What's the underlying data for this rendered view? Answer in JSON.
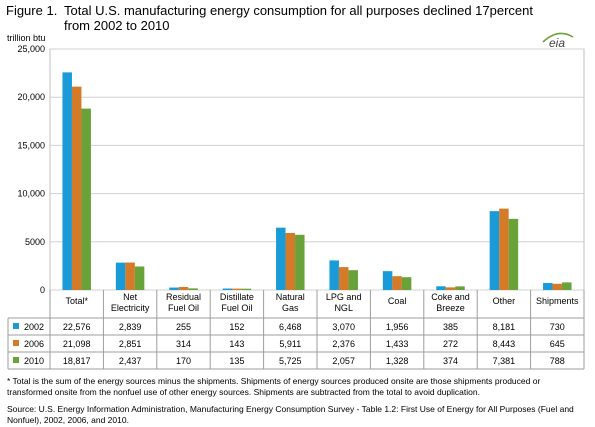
{
  "title_prefix": "Figure 1.",
  "title_line1": "Total U.S. manufacturing energy consumption for all purposes declined 17percent",
  "title_line2": "from 2002 to 2010",
  "logo_text": "eia",
  "footnote": "* Total is the sum of the energy sources minus the shipments. Shipments of energy sources produced onsite are those shipments produced or transformed onsite from the nonfuel use of other energy sources. Shipments are subtracted from the total to avoid duplication.",
  "source": "Source:  U.S. Energy Information Administration, Manufacturing Energy Consumption Survey - Table 1.2: First Use of Energy for All Purposes (Fuel and Nonfuel), 2002, 2006, and 2010.",
  "chart_data": {
    "type": "bar",
    "title": "Total U.S. manufacturing energy consumption for all purposes declined 17percent from 2002 to 2010",
    "ylabel": "trillion btu",
    "ylim": [
      0,
      25000
    ],
    "yticks": [
      0,
      5000,
      10000,
      15000,
      20000,
      25000
    ],
    "ytick_labels": [
      "0",
      "5000",
      "10,000",
      "15,000",
      "20,000",
      "25,000"
    ],
    "grid": true,
    "legend": "table-left",
    "categories": [
      [
        "Total*"
      ],
      [
        "Net",
        "Electricity"
      ],
      [
        "Residual",
        "Fuel Oil"
      ],
      [
        "Distillate",
        "Fuel Oil"
      ],
      [
        "Natural",
        "Gas"
      ],
      [
        "LPG and",
        "NGL"
      ],
      [
        "Coal"
      ],
      [
        "Coke and",
        "Breeze"
      ],
      [
        "Other"
      ],
      [
        "Shipments"
      ]
    ],
    "series": [
      {
        "name": "2002",
        "color": "#1a9bd7",
        "values": [
          22576,
          2839,
          255,
          152,
          6468,
          3070,
          1956,
          385,
          8181,
          730
        ],
        "labels": [
          "22,576",
          "2,839",
          "255",
          "152",
          "6,468",
          "3,070",
          "1,956",
          "385",
          "8,181",
          "730"
        ]
      },
      {
        "name": "2006",
        "color": "#d47a28",
        "values": [
          21098,
          2851,
          314,
          143,
          5911,
          2376,
          1433,
          272,
          8443,
          645
        ],
        "labels": [
          "21,098",
          "2,851",
          "314",
          "143",
          "5,911",
          "2,376",
          "1,433",
          "272",
          "8,443",
          "645"
        ]
      },
      {
        "name": "2010",
        "color": "#6aa23a",
        "values": [
          18817,
          2437,
          170,
          135,
          5725,
          2057,
          1328,
          374,
          7381,
          788
        ],
        "labels": [
          "18,817",
          "2,437",
          "170",
          "135",
          "5,725",
          "2,057",
          "1,328",
          "374",
          "7,381",
          "788"
        ]
      }
    ]
  }
}
